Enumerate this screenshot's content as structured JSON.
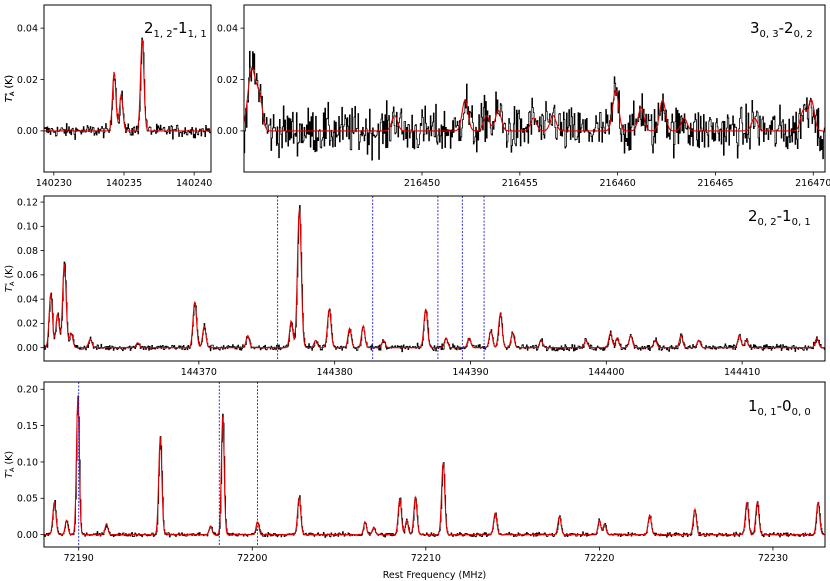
{
  "xlabel": "Rest Frequency (MHz)",
  "ylabel": "T",
  "ylabel_sub": "A",
  "ylabel_sup": "*",
  "ylabel_unit": " (K)",
  "colors": {
    "observed": "#000000",
    "model": "#dd0000",
    "marker": "#1f1fd6",
    "axes": "#000000",
    "background": "#ffffff"
  },
  "chart_data": [
    {
      "type": "line",
      "title": "2_{1,2}-1_{1,1}",
      "label_main": [
        "2",
        "-1"
      ],
      "label_subs": [
        "1, 2",
        "1, 1"
      ],
      "xlim": [
        140229.3,
        140241.2
      ],
      "ylim": [
        -0.016,
        0.049
      ],
      "xticks": [
        140230,
        140235,
        140240
      ],
      "yticks": [
        0.0,
        0.02,
        0.04
      ],
      "ytick_labels": [
        "0.00",
        "0.02",
        "0.04"
      ],
      "noise": 0.0025,
      "lines": [
        {
          "x": 140234.3,
          "y": 0.023,
          "w": 0.12
        },
        {
          "x": 140234.8,
          "y": 0.014,
          "w": 0.12
        },
        {
          "x": 140236.3,
          "y": 0.036,
          "w": 0.12
        }
      ],
      "markers": []
    },
    {
      "type": "line",
      "title": "3_{0,3}-2_{0,2}",
      "label_main": [
        "3",
        "-2"
      ],
      "label_subs": [
        "0, 3",
        "0, 2"
      ],
      "xlim": [
        216440.9,
        216470.6
      ],
      "ylim": [
        -0.016,
        0.049
      ],
      "xticks": [
        216450,
        216455,
        216460,
        216465,
        216470
      ],
      "yticks": [
        0.0,
        0.02,
        0.04
      ],
      "ytick_labels": [
        "0.00",
        "0.02",
        "0.04"
      ],
      "noise": 0.009,
      "lines": [
        {
          "x": 216441.3,
          "y": 0.024,
          "w": 0.2
        },
        {
          "x": 216441.7,
          "y": 0.012,
          "w": 0.15
        },
        {
          "x": 216448.6,
          "y": 0.006,
          "w": 0.15
        },
        {
          "x": 216452.2,
          "y": 0.012,
          "w": 0.15
        },
        {
          "x": 216453.3,
          "y": 0.006,
          "w": 0.15
        },
        {
          "x": 216453.9,
          "y": 0.008,
          "w": 0.15
        },
        {
          "x": 216455.7,
          "y": 0.005,
          "w": 0.15
        },
        {
          "x": 216456.7,
          "y": 0.006,
          "w": 0.15
        },
        {
          "x": 216459.9,
          "y": 0.016,
          "w": 0.15
        },
        {
          "x": 216461.2,
          "y": 0.009,
          "w": 0.15
        },
        {
          "x": 216462.3,
          "y": 0.012,
          "w": 0.15
        },
        {
          "x": 216463.4,
          "y": 0.005,
          "w": 0.15
        },
        {
          "x": 216467.0,
          "y": 0.005,
          "w": 0.15
        },
        {
          "x": 216469.5,
          "y": 0.008,
          "w": 0.15
        },
        {
          "x": 216469.9,
          "y": 0.012,
          "w": 0.15
        }
      ],
      "markers": []
    },
    {
      "type": "line",
      "title": "2_{0,2}-1_{0,1}",
      "label_main": [
        "2",
        "-1"
      ],
      "label_subs": [
        "0, 2",
        "0, 1"
      ],
      "xlim": [
        144358.6,
        144416.1
      ],
      "ylim": [
        -0.011,
        0.125
      ],
      "xticks": [
        144370,
        144380,
        144390,
        144400,
        144410
      ],
      "yticks": [
        0.0,
        0.02,
        0.04,
        0.06,
        0.08,
        0.1,
        0.12
      ],
      "ytick_labels": [
        "0.00",
        "0.02",
        "0.04",
        "0.06",
        "0.08",
        "0.10",
        "0.12"
      ],
      "noise": 0.0025,
      "lines": [
        {
          "x": 144359.1,
          "y": 0.045,
          "w": 0.12
        },
        {
          "x": 144359.6,
          "y": 0.028,
          "w": 0.12
        },
        {
          "x": 144360.1,
          "y": 0.07,
          "w": 0.13
        },
        {
          "x": 144360.6,
          "y": 0.012,
          "w": 0.12
        },
        {
          "x": 144362.0,
          "y": 0.007,
          "w": 0.12
        },
        {
          "x": 144365.5,
          "y": 0.004,
          "w": 0.12
        },
        {
          "x": 144369.7,
          "y": 0.038,
          "w": 0.13
        },
        {
          "x": 144370.4,
          "y": 0.018,
          "w": 0.12
        },
        {
          "x": 144373.6,
          "y": 0.01,
          "w": 0.12
        },
        {
          "x": 144376.8,
          "y": 0.022,
          "w": 0.12
        },
        {
          "x": 144377.4,
          "y": 0.115,
          "w": 0.14
        },
        {
          "x": 144378.6,
          "y": 0.006,
          "w": 0.12
        },
        {
          "x": 144379.6,
          "y": 0.032,
          "w": 0.13
        },
        {
          "x": 144381.1,
          "y": 0.016,
          "w": 0.12
        },
        {
          "x": 144382.1,
          "y": 0.018,
          "w": 0.12
        },
        {
          "x": 144383.6,
          "y": 0.006,
          "w": 0.12
        },
        {
          "x": 144386.7,
          "y": 0.032,
          "w": 0.13
        },
        {
          "x": 144388.2,
          "y": 0.008,
          "w": 0.12
        },
        {
          "x": 144389.9,
          "y": 0.008,
          "w": 0.12
        },
        {
          "x": 144391.5,
          "y": 0.014,
          "w": 0.12
        },
        {
          "x": 144392.2,
          "y": 0.028,
          "w": 0.13
        },
        {
          "x": 144393.1,
          "y": 0.012,
          "w": 0.12
        },
        {
          "x": 144395.2,
          "y": 0.006,
          "w": 0.12
        },
        {
          "x": 144398.5,
          "y": 0.006,
          "w": 0.12
        },
        {
          "x": 144400.3,
          "y": 0.012,
          "w": 0.12
        },
        {
          "x": 144400.8,
          "y": 0.008,
          "w": 0.12
        },
        {
          "x": 144401.8,
          "y": 0.01,
          "w": 0.12
        },
        {
          "x": 144403.6,
          "y": 0.006,
          "w": 0.12
        },
        {
          "x": 144405.5,
          "y": 0.01,
          "w": 0.12
        },
        {
          "x": 144406.8,
          "y": 0.006,
          "w": 0.12
        },
        {
          "x": 144409.8,
          "y": 0.01,
          "w": 0.12
        },
        {
          "x": 144410.3,
          "y": 0.006,
          "w": 0.12
        },
        {
          "x": 144415.5,
          "y": 0.008,
          "w": 0.12
        }
      ],
      "markers": [
        144375.8,
        144382.8,
        144387.6,
        144389.4,
        144391.0
      ]
    },
    {
      "type": "line",
      "title": "1_{0,1}-0_{0,0}",
      "label_main": [
        "1",
        "-0"
      ],
      "label_subs": [
        "0, 1",
        "0, 0"
      ],
      "xlim": [
        72188.0,
        72233.0
      ],
      "ylim": [
        -0.017,
        0.21
      ],
      "xticks": [
        72190,
        72200,
        72210,
        72220,
        72230
      ],
      "yticks": [
        0.0,
        0.05,
        0.1,
        0.15,
        0.2
      ],
      "ytick_labels": [
        "0.00",
        "0.05",
        "0.10",
        "0.15",
        "0.20"
      ],
      "noise": 0.003,
      "lines": [
        {
          "x": 72188.6,
          "y": 0.045,
          "w": 0.09
        },
        {
          "x": 72189.3,
          "y": 0.02,
          "w": 0.08
        },
        {
          "x": 72189.95,
          "y": 0.19,
          "w": 0.08
        },
        {
          "x": 72191.6,
          "y": 0.015,
          "w": 0.08
        },
        {
          "x": 72194.7,
          "y": 0.135,
          "w": 0.09
        },
        {
          "x": 72197.6,
          "y": 0.012,
          "w": 0.08
        },
        {
          "x": 72198.3,
          "y": 0.165,
          "w": 0.08
        },
        {
          "x": 72200.3,
          "y": 0.018,
          "w": 0.08
        },
        {
          "x": 72202.7,
          "y": 0.052,
          "w": 0.09
        },
        {
          "x": 72206.5,
          "y": 0.018,
          "w": 0.08
        },
        {
          "x": 72207.0,
          "y": 0.01,
          "w": 0.08
        },
        {
          "x": 72208.5,
          "y": 0.05,
          "w": 0.09
        },
        {
          "x": 72208.9,
          "y": 0.02,
          "w": 0.08
        },
        {
          "x": 72209.4,
          "y": 0.052,
          "w": 0.09
        },
        {
          "x": 72211.0,
          "y": 0.1,
          "w": 0.09
        },
        {
          "x": 72214.0,
          "y": 0.03,
          "w": 0.09
        },
        {
          "x": 72217.7,
          "y": 0.025,
          "w": 0.09
        },
        {
          "x": 72220.0,
          "y": 0.02,
          "w": 0.08
        },
        {
          "x": 72220.3,
          "y": 0.015,
          "w": 0.08
        },
        {
          "x": 72222.9,
          "y": 0.027,
          "w": 0.09
        },
        {
          "x": 72225.5,
          "y": 0.035,
          "w": 0.09
        },
        {
          "x": 72228.5,
          "y": 0.045,
          "w": 0.09
        },
        {
          "x": 72229.1,
          "y": 0.045,
          "w": 0.09
        },
        {
          "x": 72232.6,
          "y": 0.045,
          "w": 0.09
        }
      ],
      "markers": [
        72190.0,
        72198.1,
        72200.3
      ]
    }
  ]
}
